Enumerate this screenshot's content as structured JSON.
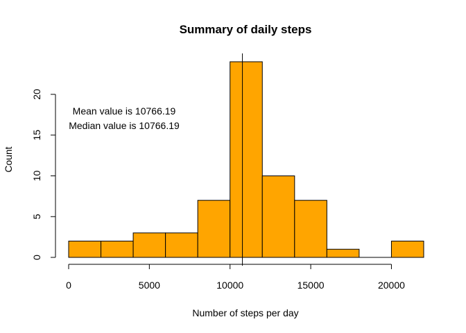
{
  "chart_data": {
    "type": "bar",
    "title": "Summary of daily steps",
    "xlabel": "Number of steps per day",
    "ylabel": "Count",
    "bins": [
      {
        "from": 0,
        "to": 2000,
        "count": 2
      },
      {
        "from": 2000,
        "to": 4000,
        "count": 2
      },
      {
        "from": 4000,
        "to": 6000,
        "count": 3
      },
      {
        "from": 6000,
        "to": 8000,
        "count": 3
      },
      {
        "from": 8000,
        "to": 10000,
        "count": 7
      },
      {
        "from": 10000,
        "to": 12000,
        "count": 24
      },
      {
        "from": 12000,
        "to": 14000,
        "count": 10
      },
      {
        "from": 14000,
        "to": 16000,
        "count": 7
      },
      {
        "from": 16000,
        "to": 18000,
        "count": 1
      },
      {
        "from": 18000,
        "to": 20000,
        "count": 0
      },
      {
        "from": 20000,
        "to": 22000,
        "count": 2
      }
    ],
    "xlim": [
      0,
      22000
    ],
    "ylim": [
      0,
      24
    ],
    "x_ticks": [
      0,
      5000,
      10000,
      15000,
      20000
    ],
    "y_ticks": [
      0,
      5,
      10,
      15,
      20
    ],
    "mean_line": 10766.19,
    "annotations": [
      "Mean value is 10766.19",
      "Median value is 10766.19"
    ],
    "bar_color": "#FFA500",
    "grid": false
  }
}
